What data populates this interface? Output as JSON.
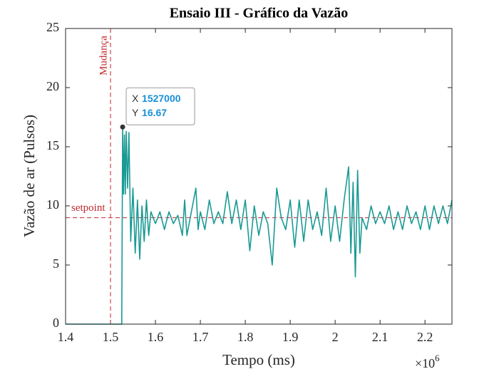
{
  "chart_data": {
    "type": "line",
    "title": "Ensaio III - Gráfico da Vazão",
    "x_label": "Tempo (ms)",
    "y_label": "Vazão de ar (Pulsos)",
    "x_multiplier": {
      "base": "×10",
      "exponent": "6"
    },
    "x": [
      1400000,
      1525000,
      1527000,
      1529000,
      1531000,
      1533000,
      1535000,
      1538000,
      1541000,
      1545000,
      1550000,
      1555000,
      1560000,
      1565000,
      1570000,
      1575000,
      1580000,
      1585000,
      1590000,
      1600000,
      1610000,
      1620000,
      1630000,
      1640000,
      1650000,
      1660000,
      1665000,
      1670000,
      1680000,
      1690000,
      1695000,
      1700000,
      1710000,
      1720000,
      1730000,
      1740000,
      1750000,
      1760000,
      1770000,
      1780000,
      1790000,
      1800000,
      1810000,
      1820000,
      1830000,
      1840000,
      1850000,
      1860000,
      1870000,
      1880000,
      1890000,
      1900000,
      1910000,
      1920000,
      1930000,
      1940000,
      1950000,
      1960000,
      1970000,
      1980000,
      1990000,
      2000000,
      2010000,
      2020000,
      2030000,
      2035000,
      2040000,
      2045000,
      2050000,
      2055000,
      2060000,
      2070000,
      2080000,
      2090000,
      2100000,
      2110000,
      2120000,
      2130000,
      2140000,
      2150000,
      2160000,
      2170000,
      2180000,
      2190000,
      2200000,
      2210000,
      2220000,
      2230000,
      2240000,
      2250000,
      2260000
    ],
    "series": [
      {
        "color": "#1a9a94",
        "values": [
          0,
          0,
          16.67,
          11,
          16,
          11,
          16.3,
          11.5,
          16.2,
          7,
          11.5,
          6,
          10.5,
          5.5,
          10,
          7,
          10.5,
          7.5,
          9.5,
          8.5,
          9.5,
          8,
          9.5,
          8.5,
          9.2,
          7.5,
          10.5,
          7.5,
          9.5,
          11.5,
          8,
          9.5,
          8,
          10.5,
          8.5,
          9.5,
          8.5,
          11.2,
          8.5,
          10.5,
          8,
          10.5,
          6.2,
          10,
          7.5,
          9.5,
          8.5,
          5,
          11.5,
          9,
          8,
          10.5,
          6.5,
          10.5,
          7,
          10.5,
          8,
          9.5,
          7.5,
          11.5,
          7,
          10,
          7,
          10.5,
          13.3,
          6,
          12,
          4,
          13,
          6,
          9,
          8,
          10,
          8.5,
          9.5,
          8.5,
          10,
          8,
          9.5,
          8,
          10,
          8.5,
          9.5,
          8,
          10,
          8,
          10,
          8.5,
          10,
          8.5,
          10.5
        ]
      }
    ],
    "xlim": [
      1400000,
      2260000
    ],
    "xticks": [
      {
        "value": 1400000,
        "label": "1.4"
      },
      {
        "value": 1500000,
        "label": "1.5"
      },
      {
        "value": 1600000,
        "label": "1.6"
      },
      {
        "value": 1700000,
        "label": "1.7"
      },
      {
        "value": 1800000,
        "label": "1.8"
      },
      {
        "value": 1900000,
        "label": "1.9"
      },
      {
        "value": 2000000,
        "label": "2"
      },
      {
        "value": 2100000,
        "label": "2.1"
      },
      {
        "value": 2200000,
        "label": "2.2"
      }
    ],
    "ylim": [
      0,
      25
    ],
    "yticks": [
      0,
      5,
      10,
      15,
      20,
      25
    ],
    "reference_lines": [
      {
        "axis": "x",
        "value": 1500000,
        "label": "Mudança"
      },
      {
        "axis": "y",
        "value": 9,
        "label": "setpoint"
      }
    ],
    "reference_color": "#c0282d",
    "datatip": {
      "x_name": "X",
      "x": 1527000,
      "y_name": "Y",
      "y": 16.67
    }
  }
}
